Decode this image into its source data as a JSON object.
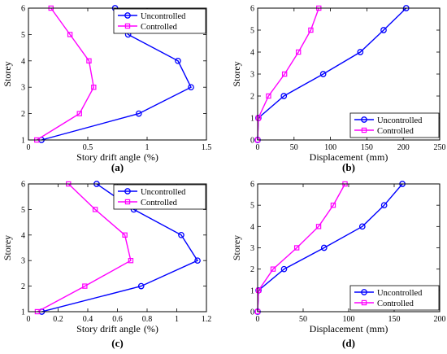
{
  "chart_data": [
    {
      "type": "line",
      "panel_label": "(a)",
      "xlabel": "Story drift angle",
      "xunit": "(%)",
      "ylabel": "Storey",
      "xlim": [
        0,
        1.5
      ],
      "ylim": [
        1,
        6
      ],
      "xticks": [
        "0",
        "0.5",
        "1",
        "1.5"
      ],
      "yticks": [
        "1",
        "2",
        "3",
        "4",
        "5",
        "6"
      ],
      "legend": "top-right",
      "series": [
        {
          "name": "Uncontrolled",
          "color": "#0000ff",
          "marker": "circle",
          "x": [
            0.11,
            0.93,
            1.37,
            1.26,
            0.84,
            0.73
          ],
          "y": [
            1,
            2,
            3,
            4,
            5,
            6
          ]
        },
        {
          "name": "Controlled",
          "color": "#ff00ff",
          "marker": "square",
          "x": [
            0.07,
            0.43,
            0.55,
            0.51,
            0.35,
            0.19
          ],
          "y": [
            1,
            2,
            3,
            4,
            5,
            6
          ]
        }
      ]
    },
    {
      "type": "line",
      "panel_label": "(b)",
      "xlabel": "Displacement",
      "xunit": "(mm)",
      "ylabel": "Storey",
      "xlim": [
        0,
        250
      ],
      "ylim": [
        0,
        6
      ],
      "xticks": [
        "0",
        "50",
        "100",
        "150",
        "200",
        "250"
      ],
      "yticks": [
        "0",
        "1",
        "2",
        "3",
        "4",
        "5",
        "6"
      ],
      "legend": "bottom-right",
      "series": [
        {
          "name": "Uncontrolled",
          "color": "#0000ff",
          "marker": "circle",
          "x": [
            0,
            1,
            36,
            90,
            141,
            173,
            204
          ],
          "y": [
            0,
            1,
            2,
            3,
            4,
            5,
            6
          ]
        },
        {
          "name": "Controlled",
          "color": "#ff00ff",
          "marker": "square",
          "x": [
            0,
            1,
            15,
            37,
            56,
            73,
            84
          ],
          "y": [
            0,
            1,
            2,
            3,
            4,
            5,
            6
          ]
        }
      ]
    },
    {
      "type": "line",
      "panel_label": "(c)",
      "xlabel": "Story drift angle",
      "xunit": "(%)",
      "ylabel": "Storey",
      "xlim": [
        0,
        1.2
      ],
      "ylim": [
        1,
        6
      ],
      "xticks": [
        "0",
        "0.2",
        "0.4",
        "0.6",
        "0.8",
        "1",
        "1.2"
      ],
      "yticks": [
        "1",
        "2",
        "3",
        "4",
        "5",
        "6"
      ],
      "legend": "top-right",
      "series": [
        {
          "name": "Uncontrolled",
          "color": "#0000ff",
          "marker": "circle",
          "x": [
            0.09,
            0.76,
            1.14,
            1.03,
            0.71,
            0.46
          ],
          "y": [
            1,
            2,
            3,
            4,
            5,
            6
          ]
        },
        {
          "name": "Controlled",
          "color": "#ff00ff",
          "marker": "square",
          "x": [
            0.06,
            0.38,
            0.69,
            0.65,
            0.45,
            0.27
          ],
          "y": [
            1,
            2,
            3,
            4,
            5,
            6
          ]
        }
      ]
    },
    {
      "type": "line",
      "panel_label": "(d)",
      "xlabel": "Displacement",
      "xunit": "(mm)",
      "ylabel": "Storey",
      "xlim": [
        0,
        200
      ],
      "ylim": [
        0,
        6
      ],
      "xticks": [
        "0",
        "50",
        "100",
        "150",
        "200"
      ],
      "yticks": [
        "0",
        "1",
        "2",
        "3",
        "4",
        "5",
        "6"
      ],
      "legend": "bottom-right",
      "series": [
        {
          "name": "Uncontrolled",
          "color": "#0000ff",
          "marker": "circle",
          "x": [
            0,
            1,
            29,
            73,
            115,
            139,
            159
          ],
          "y": [
            0,
            1,
            2,
            3,
            4,
            5,
            6
          ]
        },
        {
          "name": "Controlled",
          "color": "#ff00ff",
          "marker": "square",
          "x": [
            0,
            1,
            17,
            43,
            67,
            83,
            96
          ],
          "y": [
            0,
            1,
            2,
            3,
            4,
            5,
            6
          ]
        }
      ]
    }
  ]
}
